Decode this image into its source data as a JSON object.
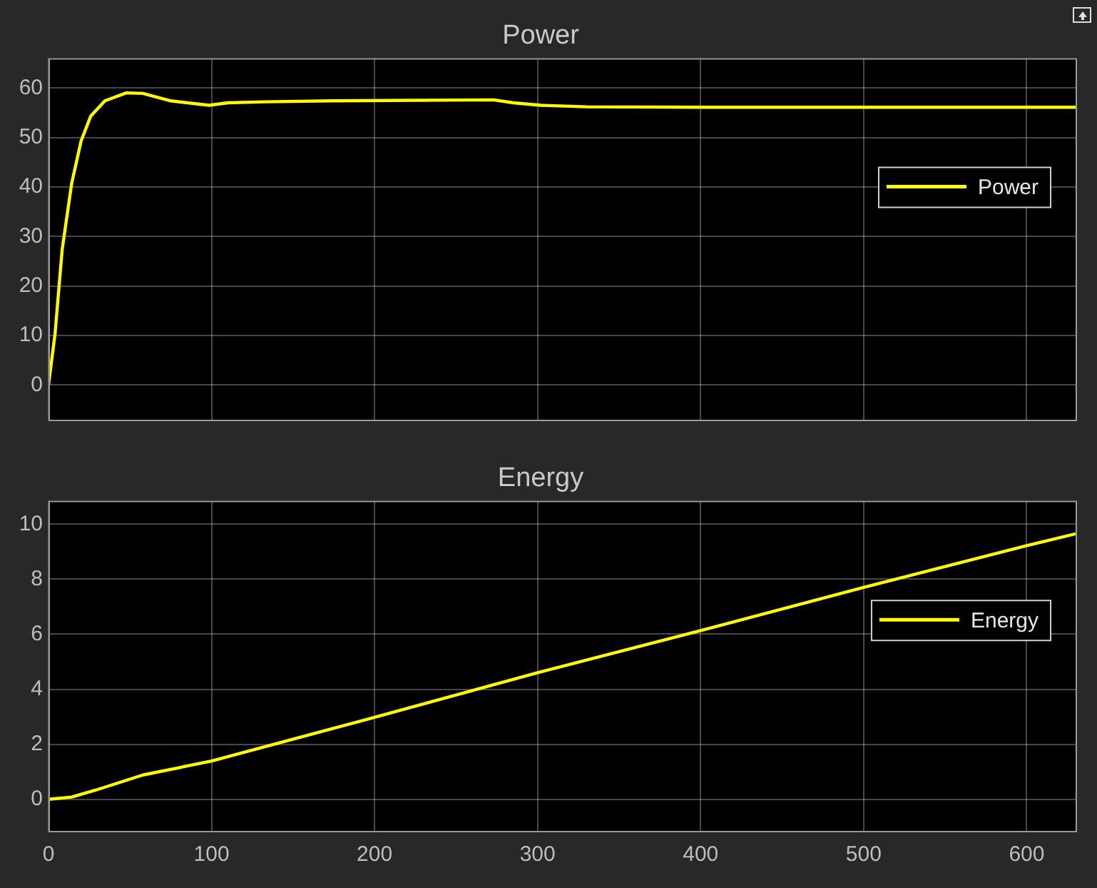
{
  "chart_data": [
    {
      "type": "line",
      "title": "Power",
      "x": [
        0,
        4,
        8.4,
        14.2,
        20,
        25.9,
        34.6,
        47.7,
        58,
        75,
        98.5,
        110,
        133,
        174,
        273,
        285,
        302,
        330,
        400,
        500,
        630
      ],
      "series": [
        {
          "name": "Power",
          "color": "#ffff00",
          "values": [
            0,
            10.3,
            27.4,
            40.7,
            49.3,
            54.3,
            57.4,
            59,
            58.9,
            57.4,
            56.5,
            57,
            57.2,
            57.4,
            57.6,
            57,
            56.5,
            56.2,
            56.1,
            56.1,
            56.1
          ]
        }
      ],
      "xlim": [
        0,
        630
      ],
      "xticks": [
        0,
        100,
        200,
        300,
        400,
        500,
        600
      ],
      "ylim": [
        -7,
        66
      ],
      "yticks": [
        0,
        10,
        20,
        30,
        40,
        50,
        60
      ],
      "grid": true,
      "legend": "right",
      "tick_labels": "y"
    },
    {
      "type": "line",
      "title": "Energy",
      "x": [
        0,
        14.2,
        28.8,
        57.8,
        100,
        200,
        300,
        400,
        500,
        600,
        630
      ],
      "series": [
        {
          "name": "Energy",
          "color": "#ffff00",
          "values": [
            0,
            0.08,
            0.33,
            0.88,
            1.39,
            2.98,
            4.6,
            6.13,
            7.7,
            9.22,
            9.65
          ]
        }
      ],
      "xlim": [
        0,
        630
      ],
      "xticks": [
        0,
        100,
        200,
        300,
        400,
        500,
        600
      ],
      "ylim": [
        -1.15,
        10.85
      ],
      "yticks": [
        0,
        2,
        4,
        6,
        8,
        10
      ],
      "grid": true,
      "legend": "right"
    }
  ]
}
